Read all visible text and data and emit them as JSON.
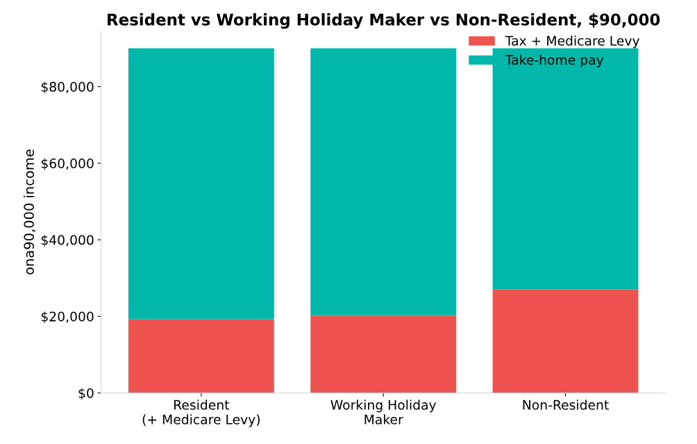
{
  "chart_data": {
    "type": "bar",
    "title": "Resident vs Working Holiday Maker vs Non-Resident, $90,000",
    "ylabel": "ona90,000 income",
    "categories": [
      "Resident\n(+ Medicare Levy)",
      "Working Holiday\nMaker",
      "Non-Resident"
    ],
    "stacked": true,
    "series": [
      {
        "name": "Tax + Medicare Levy",
        "color": "#ef5350",
        "values": [
          19300,
          20200,
          27100
        ]
      },
      {
        "name": "Take-home pay",
        "color": "#00b8a9",
        "values": [
          70700,
          69800,
          62900
        ]
      }
    ],
    "ylim": [
      0,
      94500
    ],
    "yticks": [
      {
        "value": 0,
        "label": "$0"
      },
      {
        "value": 20000,
        "label": "$20,000"
      },
      {
        "value": 40000,
        "label": "$40,000"
      },
      {
        "value": 60000,
        "label": "$60,000"
      },
      {
        "value": 80000,
        "label": "$80,000"
      }
    ],
    "grid": false,
    "legend": "top right"
  }
}
